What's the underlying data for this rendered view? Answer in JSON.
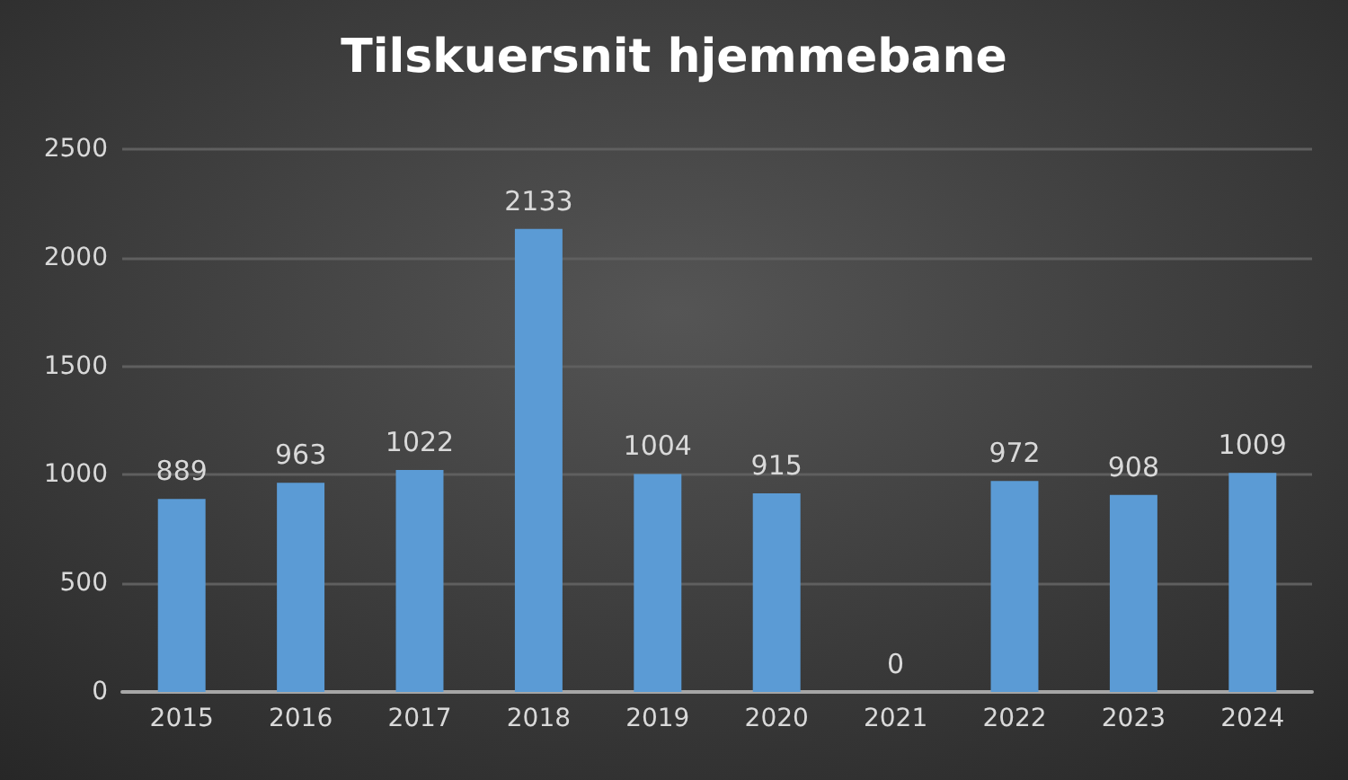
{
  "chart_data": {
    "type": "bar",
    "title": "Tilskuersnit hjemmebane",
    "categories": [
      "2015",
      "2016",
      "2017",
      "2018",
      "2019",
      "2020",
      "2021",
      "2022",
      "2023",
      "2024"
    ],
    "values": [
      889,
      963,
      1022,
      2133,
      1004,
      915,
      0,
      972,
      908,
      1009
    ],
    "color": "#5b9bd5",
    "ylim": [
      0,
      2500
    ],
    "yticks": [
      0,
      500,
      1000,
      1500,
      2000,
      2500
    ],
    "grid": "y",
    "data_labels": true
  }
}
